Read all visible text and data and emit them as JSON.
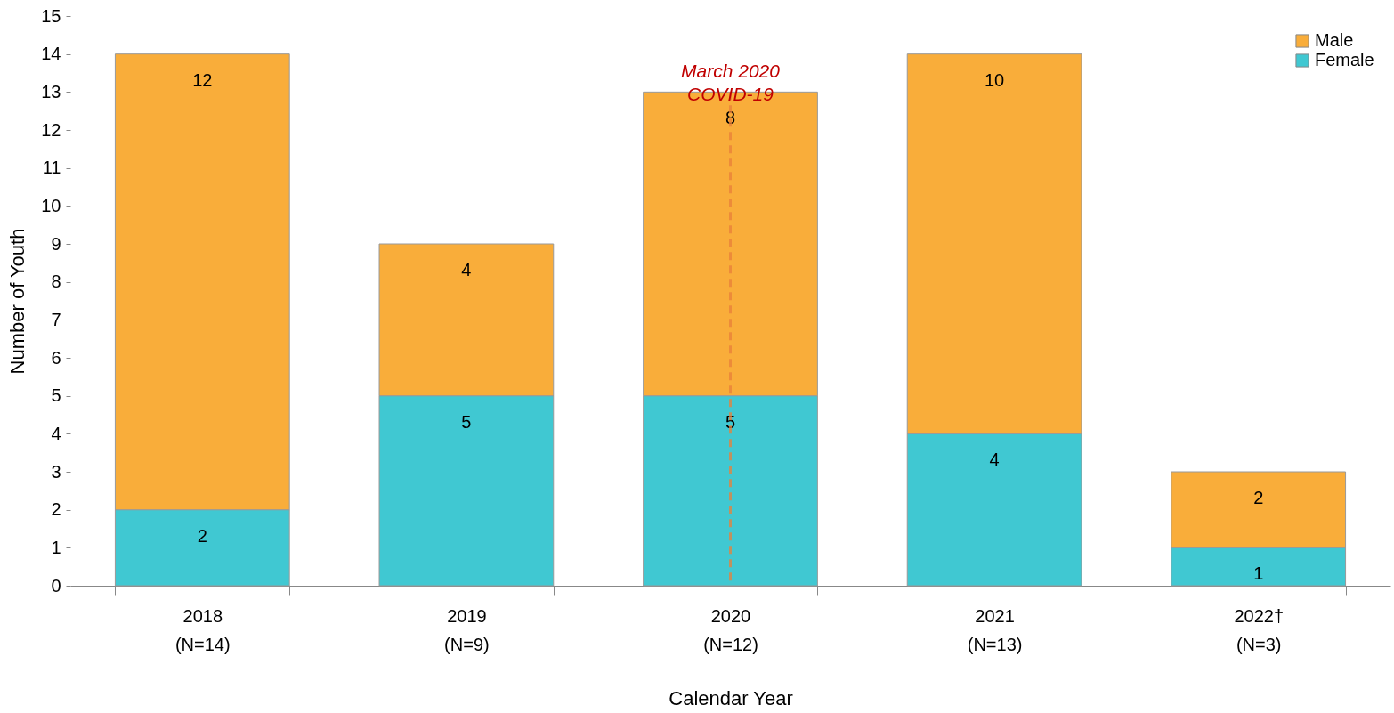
{
  "chart_data": {
    "type": "bar",
    "stacked": true,
    "xlabel": "Calendar Year",
    "ylabel": "Number of Youth",
    "categories": [
      "2018\n(N=14)",
      "2019\n(N=9)",
      "2020\n(N=12)",
      "2021\n(N=13)",
      "2022†\n(N=3)"
    ],
    "series": [
      {
        "name": "Female",
        "color": "#40c8d2",
        "values": [
          2,
          5,
          5,
          4,
          1
        ]
      },
      {
        "name": "Male",
        "color": "#f9ad3a",
        "values": [
          12,
          4,
          8,
          10,
          2
        ]
      }
    ],
    "ylim": [
      0,
      15
    ],
    "yticks": [
      0,
      1,
      2,
      3,
      4,
      5,
      6,
      7,
      8,
      9,
      10,
      11,
      12,
      13,
      14,
      15
    ],
    "data_labels": true,
    "grid": false,
    "legend": "top right",
    "ref_lines": [
      {
        "axis": "x",
        "value": "2020\n(N=12)",
        "label": "March 2020\nCOVID-19",
        "color": "#e8803a",
        "line_style": "dashed"
      }
    ]
  }
}
